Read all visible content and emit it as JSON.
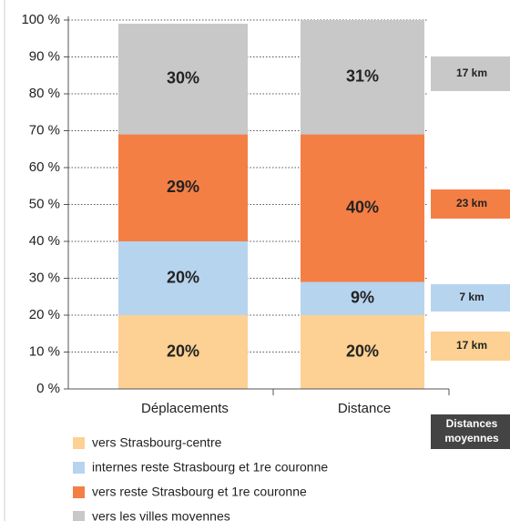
{
  "chart_data": {
    "type": "stacked_bar",
    "categories": [
      "Déplacements",
      "Distance"
    ],
    "series": [
      {
        "name": "vers Strasbourg-centre",
        "color": "#fcd193",
        "values": [
          20,
          20
        ],
        "value_labels": [
          "20%",
          "20%"
        ]
      },
      {
        "name": "internes reste Strasbourg et 1re couronne",
        "color": "#b7d4ef",
        "values": [
          20,
          9
        ],
        "value_labels": [
          "20%",
          "9%"
        ]
      },
      {
        "name": "vers reste Strasbourg et 1re couronne",
        "color": "#f47f45",
        "values": [
          29,
          40
        ],
        "value_labels": [
          "29%",
          "40%"
        ]
      },
      {
        "name": "vers les villes moyennes",
        "color": "#c8c8c9",
        "values": [
          30,
          31
        ],
        "value_labels": [
          "30%",
          "31%"
        ]
      }
    ],
    "ylim": [
      0,
      100
    ],
    "yticks": [
      {
        "value": 0,
        "label": "0 %"
      },
      {
        "value": 10,
        "label": "10 %"
      },
      {
        "value": 20,
        "label": "20 %"
      },
      {
        "value": 30,
        "label": "30 %"
      },
      {
        "value": 40,
        "label": "40 %"
      },
      {
        "value": 50,
        "label": "50 %"
      },
      {
        "value": 60,
        "label": "60 %"
      },
      {
        "value": 70,
        "label": "70 %"
      },
      {
        "value": 80,
        "label": "80 %"
      },
      {
        "value": 90,
        "label": "90 %"
      },
      {
        "value": 100,
        "label": "100 %"
      }
    ],
    "grid": true,
    "side_title": "Distances moyennes",
    "side_labels": [
      "17 km",
      "23 km",
      "7 km",
      "17 km"
    ]
  }
}
